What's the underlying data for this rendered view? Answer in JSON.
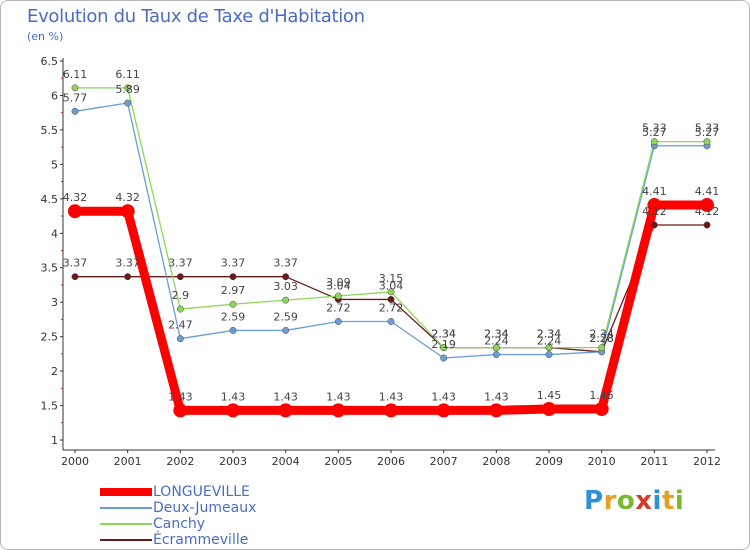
{
  "title": "Evolution du Taux de Taxe d'Habitation",
  "unit": "(en %)",
  "logo": {
    "text": "Proxiti",
    "letters": [
      "P",
      "r",
      "o",
      "x",
      "i",
      "t",
      "i"
    ],
    "colors": [
      "#2f8fd8",
      "#e8a020",
      "#7ab830",
      "#d63c2a",
      "#2f8fd8",
      "#e8a020",
      "#7ab830"
    ]
  },
  "chart_data": {
    "type": "line",
    "x": [
      "2000",
      "2001",
      "2002",
      "2003",
      "2004",
      "2005",
      "2006",
      "2007",
      "2008",
      "2009",
      "2010",
      "2011",
      "2012"
    ],
    "ylim": [
      1,
      6.5
    ],
    "yticks": [
      "1",
      "1.5",
      "2",
      "2.5",
      "3",
      "3.5",
      "4",
      "4.5",
      "5",
      "5.5",
      "6",
      "6.5"
    ],
    "grid": false,
    "legend_position": "bottom-left",
    "series": [
      {
        "name": "LONGUEVILLE",
        "color": "#ff0000",
        "line_width": 9,
        "marker_size": 7,
        "values": [
          4.32,
          4.32,
          1.43,
          1.43,
          1.43,
          1.43,
          1.43,
          1.43,
          1.43,
          1.45,
          1.45,
          4.41,
          4.41
        ],
        "labels": [
          "4.32",
          "4.32",
          "1.43",
          "1.43",
          "1.43",
          "1.43",
          "1.43",
          "1.43",
          "1.43",
          "1.45",
          "1.45",
          "4.41",
          "4.41"
        ]
      },
      {
        "name": "Deux-Jumeaux",
        "color": "#6a9ed4",
        "line_width": 1.3,
        "marker_size": 3.2,
        "values": [
          5.77,
          5.89,
          2.47,
          2.59,
          2.59,
          2.72,
          2.72,
          2.19,
          2.24,
          2.24,
          2.28,
          5.27,
          5.27
        ],
        "labels": [
          "5.77",
          "5.89",
          "2.47",
          "2.59",
          "2.59",
          "2.72",
          "2.72",
          "2.19",
          "2.24",
          "2.24",
          "2.28",
          "5.27",
          "5.27"
        ]
      },
      {
        "name": "Canchy",
        "color": "#8ed65a",
        "line_width": 1.3,
        "marker_size": 3.2,
        "values": [
          6.11,
          6.11,
          2.9,
          2.97,
          3.03,
          3.09,
          3.15,
          2.34,
          2.34,
          2.34,
          2.34,
          5.33,
          5.33
        ],
        "labels": [
          "6.11",
          "6.11",
          "2.9",
          "2.97",
          "3.03",
          "3.09",
          "3.15",
          "2.34",
          "2.34",
          "2.34",
          "2.34",
          "5.33",
          "5.33"
        ]
      },
      {
        "name": "Écrammeville",
        "color": "#6b1a1a",
        "line_width": 1.3,
        "marker_size": 3.2,
        "values": [
          3.37,
          3.37,
          3.37,
          3.37,
          3.37,
          3.04,
          3.04,
          2.34,
          2.34,
          2.34,
          2.28,
          4.12,
          4.12
        ],
        "labels": [
          "3.37",
          "3.37",
          "3.37",
          "3.37",
          "3.37",
          "3.04",
          "3.04",
          "2.34",
          "2.34",
          "2.34",
          "2.28",
          "4.12",
          "4.12"
        ]
      }
    ]
  }
}
